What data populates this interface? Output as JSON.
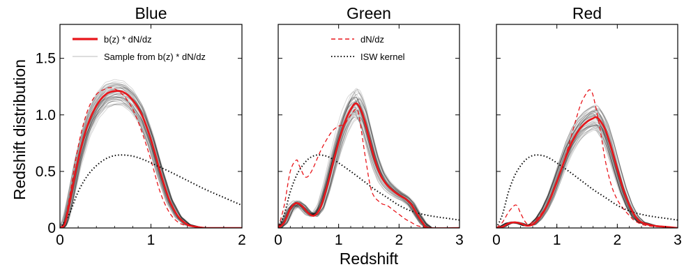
{
  "chart_data": {
    "type": "line",
    "ylabel": "Redshift distribution",
    "xlabel": "Redshift",
    "ylim": [
      0,
      1.8
    ],
    "yticks": [
      {
        "value": 0,
        "label": "0"
      },
      {
        "value": 0.5,
        "label": "0.5"
      },
      {
        "value": 1.0,
        "label": "1.0"
      },
      {
        "value": 1.5,
        "label": "1.5"
      }
    ],
    "legend": {
      "bdndz": "b(z) * dN/dz",
      "sample": "Sample from b(z) * dN/dz",
      "dndz": "dN/dz",
      "isw": "ISW kernel"
    },
    "colors": {
      "bdndz": "#e8161b",
      "sample": "#9a9a9a",
      "dndz": "#e8161b",
      "isw": "#000000"
    },
    "panels": [
      {
        "title": "Blue",
        "xlim": [
          0,
          2
        ],
        "xticks": [
          {
            "value": 0,
            "label": "0"
          },
          {
            "value": 1,
            "label": "1"
          },
          {
            "value": 2,
            "label": "2"
          }
        ],
        "series": [
          {
            "name": "b(z) * dN/dz",
            "x": [
              0,
              0.05,
              0.1,
              0.2,
              0.3,
              0.4,
              0.5,
              0.6,
              0.7,
              0.8,
              0.9,
              1.0,
              1.1,
              1.2,
              1.3,
              1.4,
              1.5,
              1.6,
              1.7,
              2.0
            ],
            "y": [
              0,
              0.03,
              0.2,
              0.6,
              0.9,
              1.08,
              1.18,
              1.21,
              1.2,
              1.13,
              1.0,
              0.78,
              0.5,
              0.25,
              0.1,
              0.03,
              0.01,
              0,
              0,
              0
            ]
          },
          {
            "name": "dN/dz",
            "x": [
              0,
              0.05,
              0.1,
              0.2,
              0.3,
              0.4,
              0.5,
              0.55,
              0.6,
              0.7,
              0.8,
              0.9,
              1.0,
              1.1,
              1.2,
              1.3,
              1.4,
              1.5,
              1.6,
              2.0
            ],
            "y": [
              0,
              0.05,
              0.25,
              0.72,
              1.03,
              1.18,
              1.23,
              1.24,
              1.23,
              1.17,
              1.05,
              0.85,
              0.6,
              0.32,
              0.14,
              0.05,
              0.02,
              0.01,
              0,
              0
            ]
          },
          {
            "name": "ISW kernel",
            "x": [
              0,
              0.1,
              0.2,
              0.3,
              0.4,
              0.5,
              0.6,
              0.7,
              0.8,
              0.9,
              1.0,
              1.2,
              1.4,
              1.6,
              1.8,
              2.0
            ],
            "y": [
              0,
              0.12,
              0.32,
              0.46,
              0.55,
              0.61,
              0.64,
              0.645,
              0.635,
              0.61,
              0.575,
              0.5,
              0.42,
              0.34,
              0.27,
              0.2
            ]
          }
        ]
      },
      {
        "title": "Green",
        "xlim": [
          0,
          3
        ],
        "xticks": [
          {
            "value": 0,
            "label": "0"
          },
          {
            "value": 1,
            "label": "1"
          },
          {
            "value": 2,
            "label": "2"
          },
          {
            "value": 3,
            "label": "3"
          }
        ],
        "series": [
          {
            "name": "b(z) * dN/dz",
            "x": [
              0,
              0.1,
              0.2,
              0.3,
              0.4,
              0.5,
              0.6,
              0.7,
              0.8,
              0.9,
              1.0,
              1.1,
              1.2,
              1.3,
              1.4,
              1.5,
              1.6,
              1.7,
              1.8,
              1.9,
              2.0,
              2.1,
              2.2,
              2.3,
              2.4,
              2.5,
              3.0
            ],
            "y": [
              0,
              0.05,
              0.17,
              0.22,
              0.19,
              0.13,
              0.11,
              0.18,
              0.35,
              0.56,
              0.76,
              0.93,
              1.05,
              1.1,
              1.0,
              0.8,
              0.6,
              0.46,
              0.38,
              0.33,
              0.29,
              0.26,
              0.21,
              0.12,
              0.04,
              0,
              0
            ]
          },
          {
            "name": "dN/dz",
            "x": [
              0,
              0.1,
              0.2,
              0.3,
              0.35,
              0.45,
              0.55,
              0.7,
              0.8,
              0.9,
              1.0,
              1.1,
              1.2,
              1.3,
              1.35,
              1.45,
              1.55,
              1.7,
              1.8,
              1.9,
              2.0,
              2.1,
              2.2,
              2.3,
              2.4,
              2.5,
              3.0
            ],
            "y": [
              0,
              0.2,
              0.5,
              0.6,
              0.55,
              0.45,
              0.5,
              0.68,
              0.78,
              0.86,
              0.9,
              0.92,
              1.0,
              1.05,
              0.95,
              0.6,
              0.32,
              0.22,
              0.2,
              0.16,
              0.12,
              0.08,
              0.05,
              0.02,
              0.01,
              0,
              0
            ]
          },
          {
            "name": "ISW kernel",
            "x": [
              0,
              0.1,
              0.2,
              0.3,
              0.4,
              0.5,
              0.6,
              0.7,
              0.8,
              0.9,
              1.0,
              1.2,
              1.4,
              1.6,
              1.8,
              2.0,
              2.2,
              2.4,
              2.6,
              2.8,
              3.0
            ],
            "y": [
              0,
              0.12,
              0.32,
              0.46,
              0.55,
              0.61,
              0.64,
              0.645,
              0.635,
              0.61,
              0.575,
              0.5,
              0.42,
              0.34,
              0.27,
              0.2,
              0.15,
              0.12,
              0.1,
              0.085,
              0.07
            ]
          }
        ]
      },
      {
        "title": "Red",
        "xlim": [
          0,
          3
        ],
        "xticks": [
          {
            "value": 0,
            "label": "0"
          },
          {
            "value": 1,
            "label": "1"
          },
          {
            "value": 2,
            "label": "2"
          },
          {
            "value": 3,
            "label": "3"
          }
        ],
        "series": [
          {
            "name": "b(z) * dN/dz",
            "x": [
              0,
              0.1,
              0.2,
              0.3,
              0.4,
              0.5,
              0.6,
              0.7,
              0.8,
              0.9,
              1.0,
              1.1,
              1.2,
              1.3,
              1.4,
              1.5,
              1.6,
              1.65,
              1.7,
              1.8,
              1.9,
              2.0,
              2.1,
              2.2,
              2.3,
              2.4,
              2.6,
              2.8,
              3.0
            ],
            "y": [
              0,
              0.01,
              0.04,
              0.05,
              0.04,
              0.02,
              0.03,
              0.08,
              0.16,
              0.27,
              0.41,
              0.56,
              0.7,
              0.81,
              0.89,
              0.94,
              0.97,
              0.98,
              0.96,
              0.87,
              0.71,
              0.52,
              0.34,
              0.2,
              0.1,
              0.05,
              0.02,
              0.01,
              0
            ]
          },
          {
            "name": "dN/dz",
            "x": [
              0,
              0.1,
              0.2,
              0.3,
              0.35,
              0.4,
              0.5,
              0.6,
              0.7,
              0.8,
              0.9,
              1.0,
              1.1,
              1.2,
              1.3,
              1.4,
              1.5,
              1.55,
              1.6,
              1.7,
              1.8,
              1.9,
              2.0,
              2.1,
              2.2,
              2.3,
              2.5,
              3.0
            ],
            "y": [
              0,
              0.05,
              0.14,
              0.2,
              0.19,
              0.13,
              0.04,
              0.05,
              0.1,
              0.17,
              0.27,
              0.4,
              0.56,
              0.74,
              0.93,
              1.1,
              1.2,
              1.22,
              1.17,
              0.92,
              0.6,
              0.38,
              0.25,
              0.17,
              0.11,
              0.06,
              0.02,
              0
            ]
          },
          {
            "name": "ISW kernel",
            "x": [
              0,
              0.1,
              0.2,
              0.3,
              0.4,
              0.5,
              0.6,
              0.7,
              0.8,
              0.9,
              1.0,
              1.2,
              1.4,
              1.6,
              1.8,
              2.0,
              2.2,
              2.4,
              2.6,
              2.8,
              3.0
            ],
            "y": [
              0,
              0.12,
              0.32,
              0.46,
              0.55,
              0.61,
              0.64,
              0.645,
              0.635,
              0.61,
              0.575,
              0.5,
              0.42,
              0.34,
              0.27,
              0.2,
              0.15,
              0.12,
              0.1,
              0.085,
              0.07
            ]
          }
        ]
      }
    ]
  }
}
